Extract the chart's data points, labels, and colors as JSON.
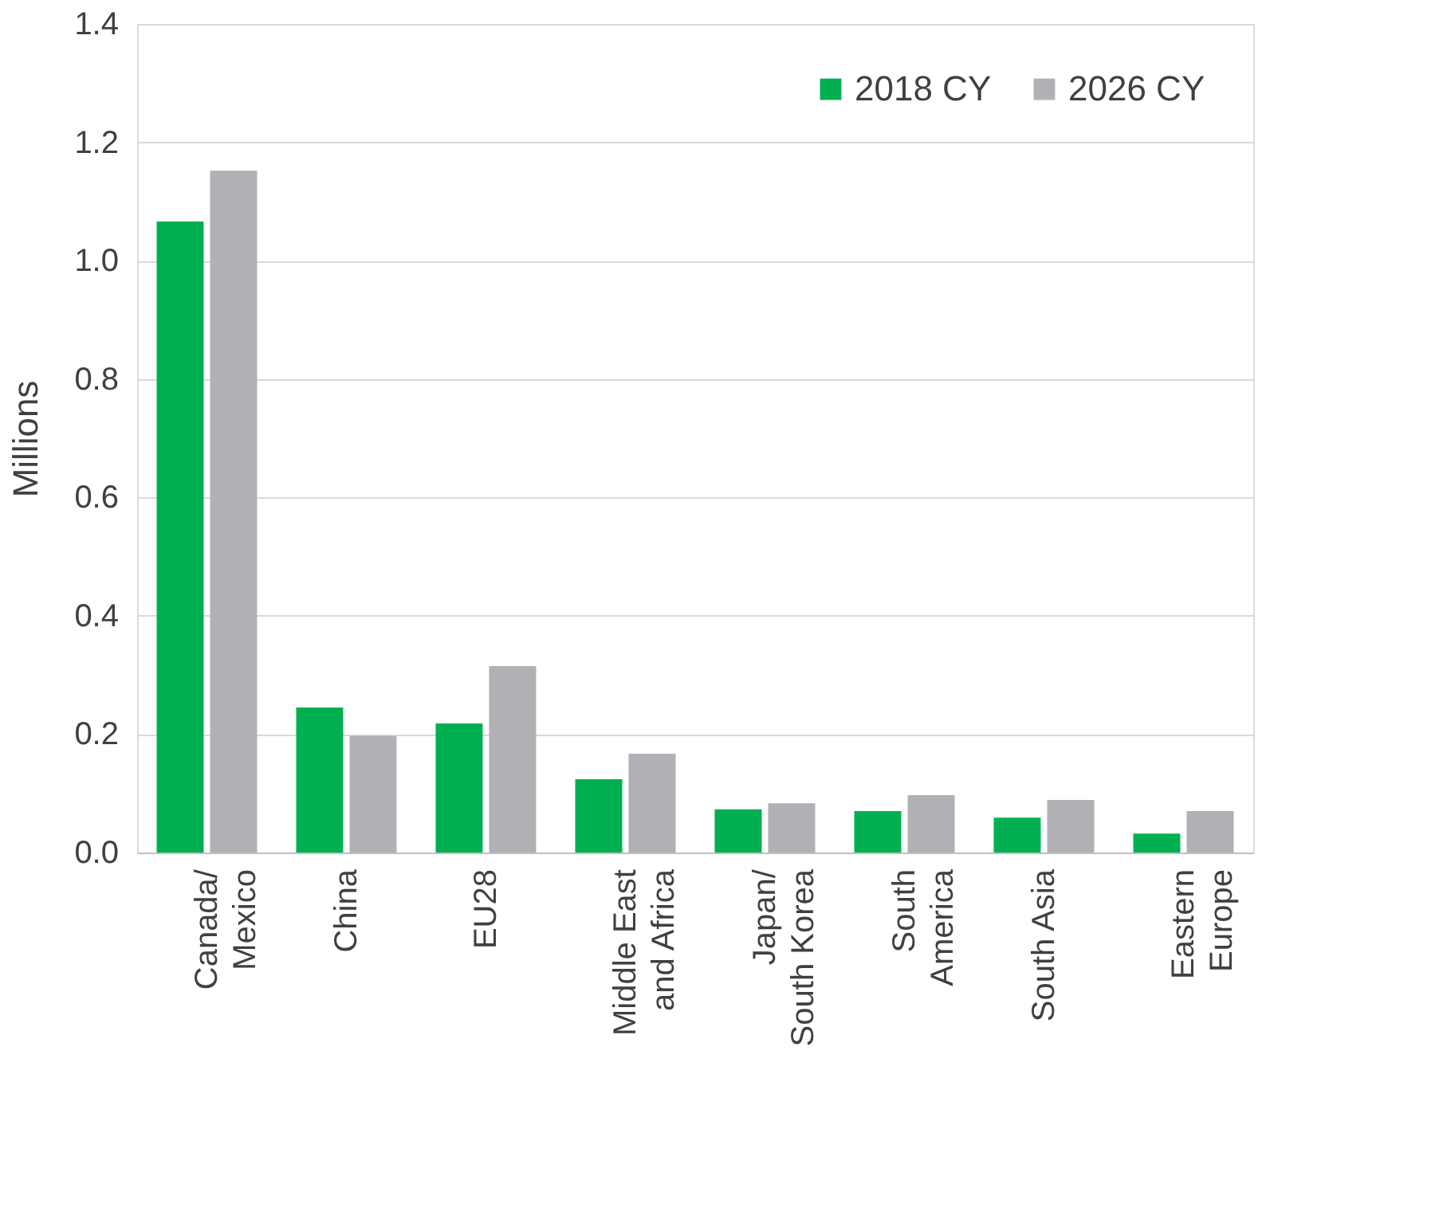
{
  "chart_data": {
    "type": "bar",
    "ylabel": "Millions",
    "categories": [
      "Canada/\nMexico",
      "China",
      "EU28",
      "Middle East\nand Africa",
      "Japan/\nSouth Korea",
      "South\nAmerica",
      "South Asia",
      "Eastern\nEurope"
    ],
    "series": [
      {
        "name": "2018 CY",
        "color": "#00b050",
        "values": [
          1.066,
          0.245,
          0.218,
          0.124,
          0.073,
          0.07,
          0.059,
          0.032
        ]
      },
      {
        "name": "2026 CY",
        "color": "#b1b1b5",
        "values": [
          1.152,
          0.197,
          0.315,
          0.167,
          0.083,
          0.097,
          0.089,
          0.07
        ]
      }
    ],
    "ylim": [
      0,
      1.4
    ],
    "yticks": [
      {
        "value": 0,
        "label": "0.0"
      },
      0.2,
      0.4,
      0.6,
      0.8,
      {
        "value": 1,
        "label": "1.0"
      },
      1.2,
      1.4
    ],
    "grid": "y",
    "legend": "top right"
  }
}
